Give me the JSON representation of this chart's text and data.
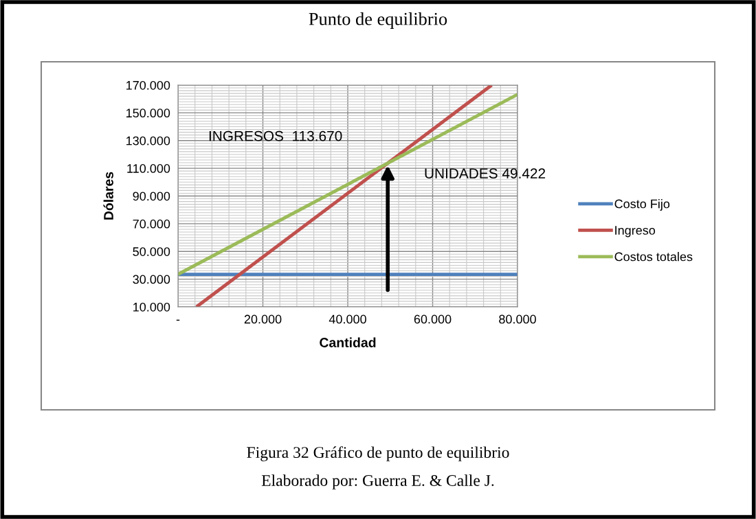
{
  "chart_data": {
    "type": "line",
    "title": "Punto de equilibrio",
    "xlabel": "Cantidad",
    "ylabel": "Dólares",
    "series": [
      {
        "name": "Costo Fijo",
        "color": "#4f81bd",
        "x": [
          0,
          80000
        ],
        "values": [
          33500,
          33500
        ]
      },
      {
        "name": "Ingreso",
        "color": "#c0504d",
        "x": [
          4350,
          73900
        ],
        "values": [
          10000,
          170000
        ]
      },
      {
        "name": "Costos totales",
        "color": "#9bbb59",
        "x": [
          0,
          80000
        ],
        "values": [
          33500,
          163300
        ]
      }
    ],
    "xlim": [
      0,
      80000
    ],
    "xticks": [
      {
        "value": 0,
        "label": "-"
      },
      {
        "value": 20000,
        "label": "20.000"
      },
      {
        "value": 40000,
        "label": "40.000"
      },
      {
        "value": 60000,
        "label": "60.000"
      },
      {
        "value": 80000,
        "label": "80.000"
      }
    ],
    "ylim": [
      10000,
      170000
    ],
    "yticks": [
      {
        "value": 10000,
        "label": "10.000"
      },
      {
        "value": 30000,
        "label": "30.000"
      },
      {
        "value": 50000,
        "label": "50.000"
      },
      {
        "value": 70000,
        "label": "70.000"
      },
      {
        "value": 90000,
        "label": "90.000"
      },
      {
        "value": 110000,
        "label": "110.000"
      },
      {
        "value": 130000,
        "label": "130.000"
      },
      {
        "value": 150000,
        "label": "150.000"
      },
      {
        "value": 170000,
        "label": "170.000"
      }
    ],
    "annotations": [
      "INGRESOS  113.670",
      {
        "text": "UNIDADES 49.422",
        "x": 49422,
        "y": 113670
      },
      "Figura 32 Gráfico de punto de equilibrio",
      "Elaborado por: Guerra E. & Calle J."
    ],
    "grid": true,
    "legend": "right",
    "marker": "none",
    "line_style": "solid"
  }
}
